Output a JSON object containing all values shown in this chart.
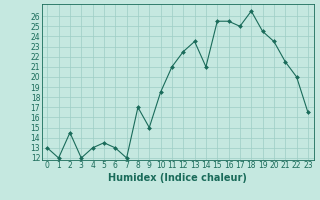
{
  "x": [
    0,
    1,
    2,
    3,
    4,
    5,
    6,
    7,
    8,
    9,
    10,
    11,
    12,
    13,
    14,
    15,
    16,
    17,
    18,
    19,
    20,
    21,
    22,
    23
  ],
  "y": [
    13,
    12,
    14.5,
    12,
    13,
    13.5,
    13,
    12,
    17,
    15,
    18.5,
    21,
    22.5,
    23.5,
    21,
    25.5,
    25.5,
    25,
    26.5,
    24.5,
    23.5,
    21.5,
    20,
    16.5
  ],
  "line_color": "#1a6b5a",
  "marker_color": "#1a6b5a",
  "bg_color": "#c5e8e0",
  "grid_color": "#9ecec5",
  "xlabel": "Humidex (Indice chaleur)",
  "ylim": [
    12,
    27
  ],
  "xlim_min": -0.5,
  "xlim_max": 23.5,
  "yticks": [
    12,
    13,
    14,
    15,
    16,
    17,
    18,
    19,
    20,
    21,
    22,
    23,
    24,
    25,
    26
  ],
  "xticks": [
    0,
    1,
    2,
    3,
    4,
    5,
    6,
    7,
    8,
    9,
    10,
    11,
    12,
    13,
    14,
    15,
    16,
    17,
    18,
    19,
    20,
    21,
    22,
    23
  ],
  "tick_fontsize": 5.5,
  "xlabel_fontsize": 7,
  "label_color": "#1a6b5a",
  "spine_color": "#1a6b5a"
}
